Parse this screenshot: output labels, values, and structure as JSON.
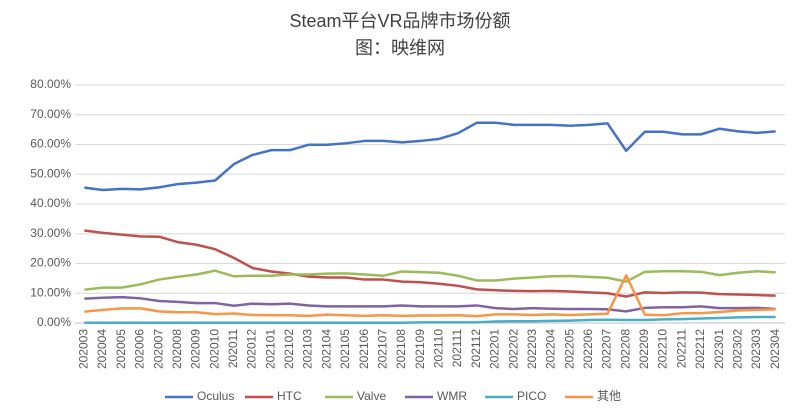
{
  "chart_data": {
    "type": "line",
    "title": "Steam平台VR品牌市场份额",
    "subtitle": "图：映维网",
    "categories": [
      "202003",
      "202004",
      "202005",
      "202006",
      "202007",
      "202008",
      "202009",
      "202010",
      "202011",
      "202012",
      "202101",
      "202102",
      "202103",
      "202104",
      "202105",
      "202106",
      "202107",
      "202108",
      "202109",
      "202110",
      "202111",
      "202112",
      "202201",
      "202202",
      "202203",
      "202204",
      "202205",
      "202206",
      "202207",
      "202208",
      "202209",
      "202210",
      "202211",
      "202212",
      "202301",
      "202302",
      "202303",
      "202304"
    ],
    "series": [
      {
        "name": "Oculus",
        "color": "#4472c4",
        "values": [
          45.5,
          44.7,
          45.1,
          44.9,
          45.6,
          46.7,
          47.2,
          47.9,
          53.4,
          56.5,
          58.1,
          58.1,
          59.9,
          59.9,
          60.4,
          61.2,
          61.2,
          60.7,
          61.2,
          61.9,
          63.8,
          67.3,
          67.3,
          66.6,
          66.6,
          66.6,
          66.3,
          66.6,
          67.1,
          57.9,
          64.3,
          64.3,
          63.4,
          63.4,
          65.3,
          64.4,
          63.9,
          64.4
        ]
      },
      {
        "name": "HTC",
        "color": "#c0504d",
        "values": [
          31.1,
          30.3,
          29.7,
          29.1,
          29.0,
          27.2,
          26.3,
          24.8,
          21.9,
          18.5,
          17.3,
          16.6,
          15.6,
          15.3,
          15.3,
          14.6,
          14.6,
          13.9,
          13.7,
          13.2,
          12.5,
          11.3,
          11.0,
          10.8,
          10.7,
          10.8,
          10.6,
          10.3,
          10.0,
          8.9,
          10.3,
          10.1,
          10.3,
          10.2,
          9.7,
          9.6,
          9.4,
          9.2
        ]
      },
      {
        "name": "Valve",
        "color": "#9bbb59",
        "values": [
          11.2,
          11.9,
          11.9,
          13.0,
          14.6,
          15.5,
          16.3,
          17.6,
          15.7,
          15.9,
          15.9,
          16.3,
          16.3,
          16.6,
          16.7,
          16.3,
          15.9,
          17.3,
          17.1,
          16.9,
          15.9,
          14.3,
          14.3,
          14.9,
          15.3,
          15.7,
          15.8,
          15.5,
          15.2,
          13.9,
          17.2,
          17.4,
          17.4,
          17.2,
          16.1,
          16.9,
          17.4,
          17.0
        ]
      },
      {
        "name": "WMR",
        "color": "#8064a2",
        "values": [
          8.2,
          8.5,
          8.7,
          8.3,
          7.4,
          7.1,
          6.7,
          6.7,
          5.8,
          6.5,
          6.3,
          6.5,
          5.9,
          5.6,
          5.6,
          5.6,
          5.6,
          5.9,
          5.6,
          5.6,
          5.6,
          5.9,
          5.0,
          4.7,
          5.0,
          4.8,
          4.7,
          4.7,
          4.6,
          3.9,
          5.1,
          5.3,
          5.3,
          5.6,
          5.0,
          5.0,
          5.1,
          4.7
        ]
      },
      {
        "name": "PICO",
        "color": "#4bacc6",
        "values": [
          0.1,
          0.1,
          0.1,
          0.1,
          0.1,
          0.1,
          0.1,
          0.1,
          0.1,
          0.1,
          0.1,
          0.1,
          0.1,
          0.1,
          0.1,
          0.1,
          0.1,
          0.1,
          0.2,
          0.2,
          0.2,
          0.2,
          0.5,
          0.6,
          0.6,
          0.7,
          0.8,
          1.0,
          1.1,
          1.0,
          1.0,
          1.2,
          1.3,
          1.5,
          1.7,
          1.9,
          2.0,
          2.0
        ]
      },
      {
        "name": "其他",
        "color": "#f79646",
        "values": [
          3.8,
          4.4,
          4.9,
          4.9,
          3.9,
          3.6,
          3.6,
          3.0,
          3.2,
          2.7,
          2.6,
          2.6,
          2.4,
          2.8,
          2.6,
          2.4,
          2.6,
          2.4,
          2.5,
          2.5,
          2.6,
          2.3,
          2.9,
          2.9,
          2.7,
          2.9,
          2.7,
          2.9,
          3.1,
          16.0,
          2.8,
          2.6,
          3.3,
          3.3,
          3.7,
          4.2,
          4.4,
          4.6
        ]
      }
    ],
    "ylim": [
      0,
      80
    ],
    "yticks": [
      {
        "value": 0,
        "label": "0.00%"
      },
      {
        "value": 10,
        "label": "10.00%"
      },
      {
        "value": 20,
        "label": "20.00%"
      },
      {
        "value": 30,
        "label": "30.00%"
      },
      {
        "value": 40,
        "label": "40.00%"
      },
      {
        "value": 50,
        "label": "50.00%"
      },
      {
        "value": 60,
        "label": "60.00%"
      },
      {
        "value": 70,
        "label": "70.00%"
      },
      {
        "value": 80,
        "label": "80.00%"
      }
    ],
    "grid": true,
    "legend": "bottom"
  }
}
